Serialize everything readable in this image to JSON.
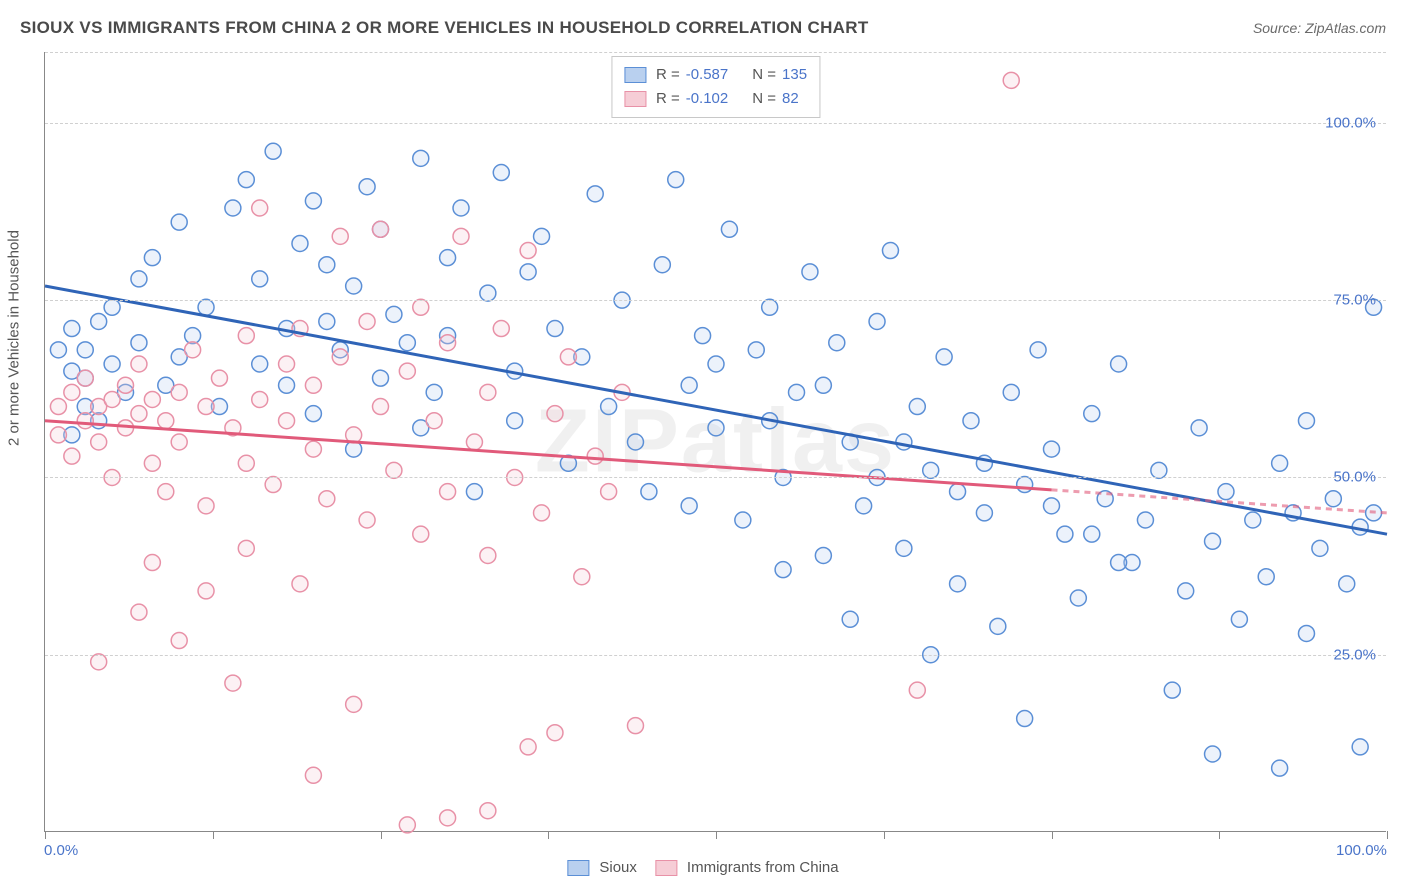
{
  "title": "SIOUX VS IMMIGRANTS FROM CHINA 2 OR MORE VEHICLES IN HOUSEHOLD CORRELATION CHART",
  "source_label": "Source: ",
  "source_name": "ZipAtlas.com",
  "watermark": "ZIPatlas",
  "ylabel": "2 or more Vehicles in Household",
  "chart": {
    "type": "scatter",
    "xlim": [
      0,
      100
    ],
    "ylim": [
      0,
      110
    ],
    "grid_color": "#d0d0d0",
    "background_color": "#ffffff",
    "axis_color": "#888888",
    "x_tick_positions": [
      0,
      12.5,
      25,
      37.5,
      50,
      62.5,
      75,
      87.5,
      100
    ],
    "x_tick_labels": {
      "0": "0.0%",
      "100": "100.0%"
    },
    "y_gridlines": [
      25,
      50,
      75,
      100,
      110
    ],
    "y_tick_labels": {
      "25": "25.0%",
      "50": "50.0%",
      "75": "75.0%",
      "100": "100.0%"
    },
    "marker_radius": 8,
    "marker_stroke_width": 1.5,
    "marker_fill_opacity": 0.28,
    "trendline_width": 3,
    "legend_top": {
      "rows": [
        {
          "swatch_fill": "#b9d0ef",
          "swatch_stroke": "#5b8fd6",
          "r_label": "R =",
          "r": "-0.587",
          "n_label": "N =",
          "n": "135"
        },
        {
          "swatch_fill": "#f6cdd6",
          "swatch_stroke": "#e891a7",
          "r_label": "R =",
          "r": "-0.102",
          "n_label": "N =",
          "n": " 82"
        }
      ]
    },
    "legend_bottom": [
      {
        "swatch_fill": "#b9d0ef",
        "swatch_stroke": "#5b8fd6",
        "label": "Sioux"
      },
      {
        "swatch_fill": "#f6cdd6",
        "swatch_stroke": "#e891a7",
        "label": "Immigrants from China"
      }
    ],
    "series": [
      {
        "name": "sioux",
        "color_stroke": "#5b8fd6",
        "color_fill": "#b9d0ef",
        "trendline": {
          "x1": 0,
          "y1": 77,
          "x2": 100,
          "y2": 42,
          "color": "#2f64b7",
          "dash_after_x": null
        },
        "points": [
          [
            1,
            68
          ],
          [
            2,
            65
          ],
          [
            2,
            71
          ],
          [
            2,
            56
          ],
          [
            3,
            60
          ],
          [
            3,
            68
          ],
          [
            3,
            64
          ],
          [
            4,
            72
          ],
          [
            4,
            58
          ],
          [
            5,
            66
          ],
          [
            5,
            74
          ],
          [
            6,
            62
          ],
          [
            7,
            69
          ],
          [
            7,
            78
          ],
          [
            8,
            81
          ],
          [
            9,
            63
          ],
          [
            10,
            67
          ],
          [
            10,
            86
          ],
          [
            11,
            70
          ],
          [
            12,
            74
          ],
          [
            13,
            60
          ],
          [
            14,
            88
          ],
          [
            15,
            92
          ],
          [
            16,
            66
          ],
          [
            16,
            78
          ],
          [
            17,
            96
          ],
          [
            18,
            71
          ],
          [
            18,
            63
          ],
          [
            19,
            83
          ],
          [
            20,
            89
          ],
          [
            20,
            59
          ],
          [
            21,
            72
          ],
          [
            21,
            80
          ],
          [
            22,
            68
          ],
          [
            23,
            77
          ],
          [
            23,
            54
          ],
          [
            24,
            91
          ],
          [
            25,
            64
          ],
          [
            25,
            85
          ],
          [
            26,
            73
          ],
          [
            27,
            69
          ],
          [
            28,
            95
          ],
          [
            28,
            57
          ],
          [
            29,
            62
          ],
          [
            30,
            81
          ],
          [
            30,
            70
          ],
          [
            31,
            88
          ],
          [
            32,
            48
          ],
          [
            33,
            76
          ],
          [
            34,
            93
          ],
          [
            35,
            65
          ],
          [
            35,
            58
          ],
          [
            36,
            79
          ],
          [
            37,
            84
          ],
          [
            38,
            71
          ],
          [
            39,
            52
          ],
          [
            40,
            67
          ],
          [
            41,
            90
          ],
          [
            42,
            60
          ],
          [
            43,
            75
          ],
          [
            44,
            55
          ],
          [
            45,
            48
          ],
          [
            46,
            80
          ],
          [
            47,
            92
          ],
          [
            48,
            63
          ],
          [
            49,
            70
          ],
          [
            50,
            57
          ],
          [
            51,
            85
          ],
          [
            52,
            44
          ],
          [
            53,
            68
          ],
          [
            54,
            74
          ],
          [
            55,
            50
          ],
          [
            56,
            62
          ],
          [
            57,
            79
          ],
          [
            58,
            39
          ],
          [
            59,
            69
          ],
          [
            60,
            55
          ],
          [
            61,
            46
          ],
          [
            62,
            72
          ],
          [
            63,
            82
          ],
          [
            64,
            40
          ],
          [
            65,
            60
          ],
          [
            66,
            51
          ],
          [
            67,
            67
          ],
          [
            68,
            35
          ],
          [
            69,
            58
          ],
          [
            70,
            45
          ],
          [
            71,
            29
          ],
          [
            72,
            62
          ],
          [
            73,
            49
          ],
          [
            74,
            68
          ],
          [
            75,
            54
          ],
          [
            76,
            42
          ],
          [
            77,
            33
          ],
          [
            78,
            59
          ],
          [
            79,
            47
          ],
          [
            80,
            66
          ],
          [
            81,
            38
          ],
          [
            82,
            44
          ],
          [
            83,
            51
          ],
          [
            85,
            34
          ],
          [
            86,
            57
          ],
          [
            87,
            41
          ],
          [
            88,
            48
          ],
          [
            89,
            30
          ],
          [
            90,
            44
          ],
          [
            91,
            36
          ],
          [
            92,
            52
          ],
          [
            93,
            45
          ],
          [
            94,
            28
          ],
          [
            94,
            58
          ],
          [
            95,
            40
          ],
          [
            96,
            47
          ],
          [
            97,
            35
          ],
          [
            98,
            43
          ],
          [
            98,
            12
          ],
          [
            99,
            74
          ],
          [
            99,
            45
          ],
          [
            84,
            20
          ],
          [
            73,
            16
          ],
          [
            66,
            25
          ],
          [
            60,
            30
          ],
          [
            55,
            37
          ],
          [
            48,
            46
          ],
          [
            87,
            11
          ],
          [
            92,
            9
          ],
          [
            80,
            38
          ],
          [
            78,
            42
          ],
          [
            75,
            46
          ],
          [
            70,
            52
          ],
          [
            68,
            48
          ],
          [
            64,
            55
          ],
          [
            62,
            50
          ],
          [
            58,
            63
          ],
          [
            54,
            58
          ],
          [
            50,
            66
          ]
        ]
      },
      {
        "name": "china",
        "color_stroke": "#e891a7",
        "color_fill": "#f6cdd6",
        "trendline": {
          "x1": 0,
          "y1": 58,
          "x2": 100,
          "y2": 45,
          "color": "#e15a7a",
          "dash_after_x": 75
        },
        "points": [
          [
            1,
            60
          ],
          [
            1,
            56
          ],
          [
            2,
            62
          ],
          [
            2,
            53
          ],
          [
            3,
            58
          ],
          [
            3,
            64
          ],
          [
            4,
            55
          ],
          [
            4,
            60
          ],
          [
            5,
            61
          ],
          [
            5,
            50
          ],
          [
            6,
            57
          ],
          [
            6,
            63
          ],
          [
            7,
            59
          ],
          [
            7,
            66
          ],
          [
            8,
            52
          ],
          [
            8,
            61
          ],
          [
            9,
            58
          ],
          [
            9,
            48
          ],
          [
            10,
            62
          ],
          [
            10,
            55
          ],
          [
            11,
            68
          ],
          [
            12,
            60
          ],
          [
            12,
            46
          ],
          [
            13,
            64
          ],
          [
            14,
            57
          ],
          [
            15,
            70
          ],
          [
            15,
            52
          ],
          [
            16,
            61
          ],
          [
            16,
            88
          ],
          [
            17,
            49
          ],
          [
            18,
            66
          ],
          [
            18,
            58
          ],
          [
            19,
            71
          ],
          [
            20,
            54
          ],
          [
            20,
            63
          ],
          [
            21,
            47
          ],
          [
            22,
            67
          ],
          [
            22,
            84
          ],
          [
            23,
            56
          ],
          [
            24,
            72
          ],
          [
            24,
            44
          ],
          [
            25,
            60
          ],
          [
            25,
            85
          ],
          [
            26,
            51
          ],
          [
            27,
            65
          ],
          [
            28,
            42
          ],
          [
            28,
            74
          ],
          [
            29,
            58
          ],
          [
            30,
            48
          ],
          [
            30,
            69
          ],
          [
            31,
            84
          ],
          [
            32,
            55
          ],
          [
            33,
            62
          ],
          [
            33,
            39
          ],
          [
            34,
            71
          ],
          [
            35,
            50
          ],
          [
            36,
            82
          ],
          [
            37,
            45
          ],
          [
            38,
            59
          ],
          [
            39,
            67
          ],
          [
            40,
            36
          ],
          [
            41,
            53
          ],
          [
            42,
            48
          ],
          [
            43,
            62
          ],
          [
            44,
            15
          ],
          [
            27,
            1
          ],
          [
            30,
            2
          ],
          [
            33,
            3
          ],
          [
            10,
            27
          ],
          [
            14,
            21
          ],
          [
            19,
            35
          ],
          [
            23,
            18
          ],
          [
            7,
            31
          ],
          [
            4,
            24
          ],
          [
            36,
            12
          ],
          [
            20,
            8
          ],
          [
            15,
            40
          ],
          [
            12,
            34
          ],
          [
            8,
            38
          ],
          [
            72,
            106
          ],
          [
            65,
            20
          ],
          [
            38,
            14
          ]
        ]
      }
    ]
  }
}
